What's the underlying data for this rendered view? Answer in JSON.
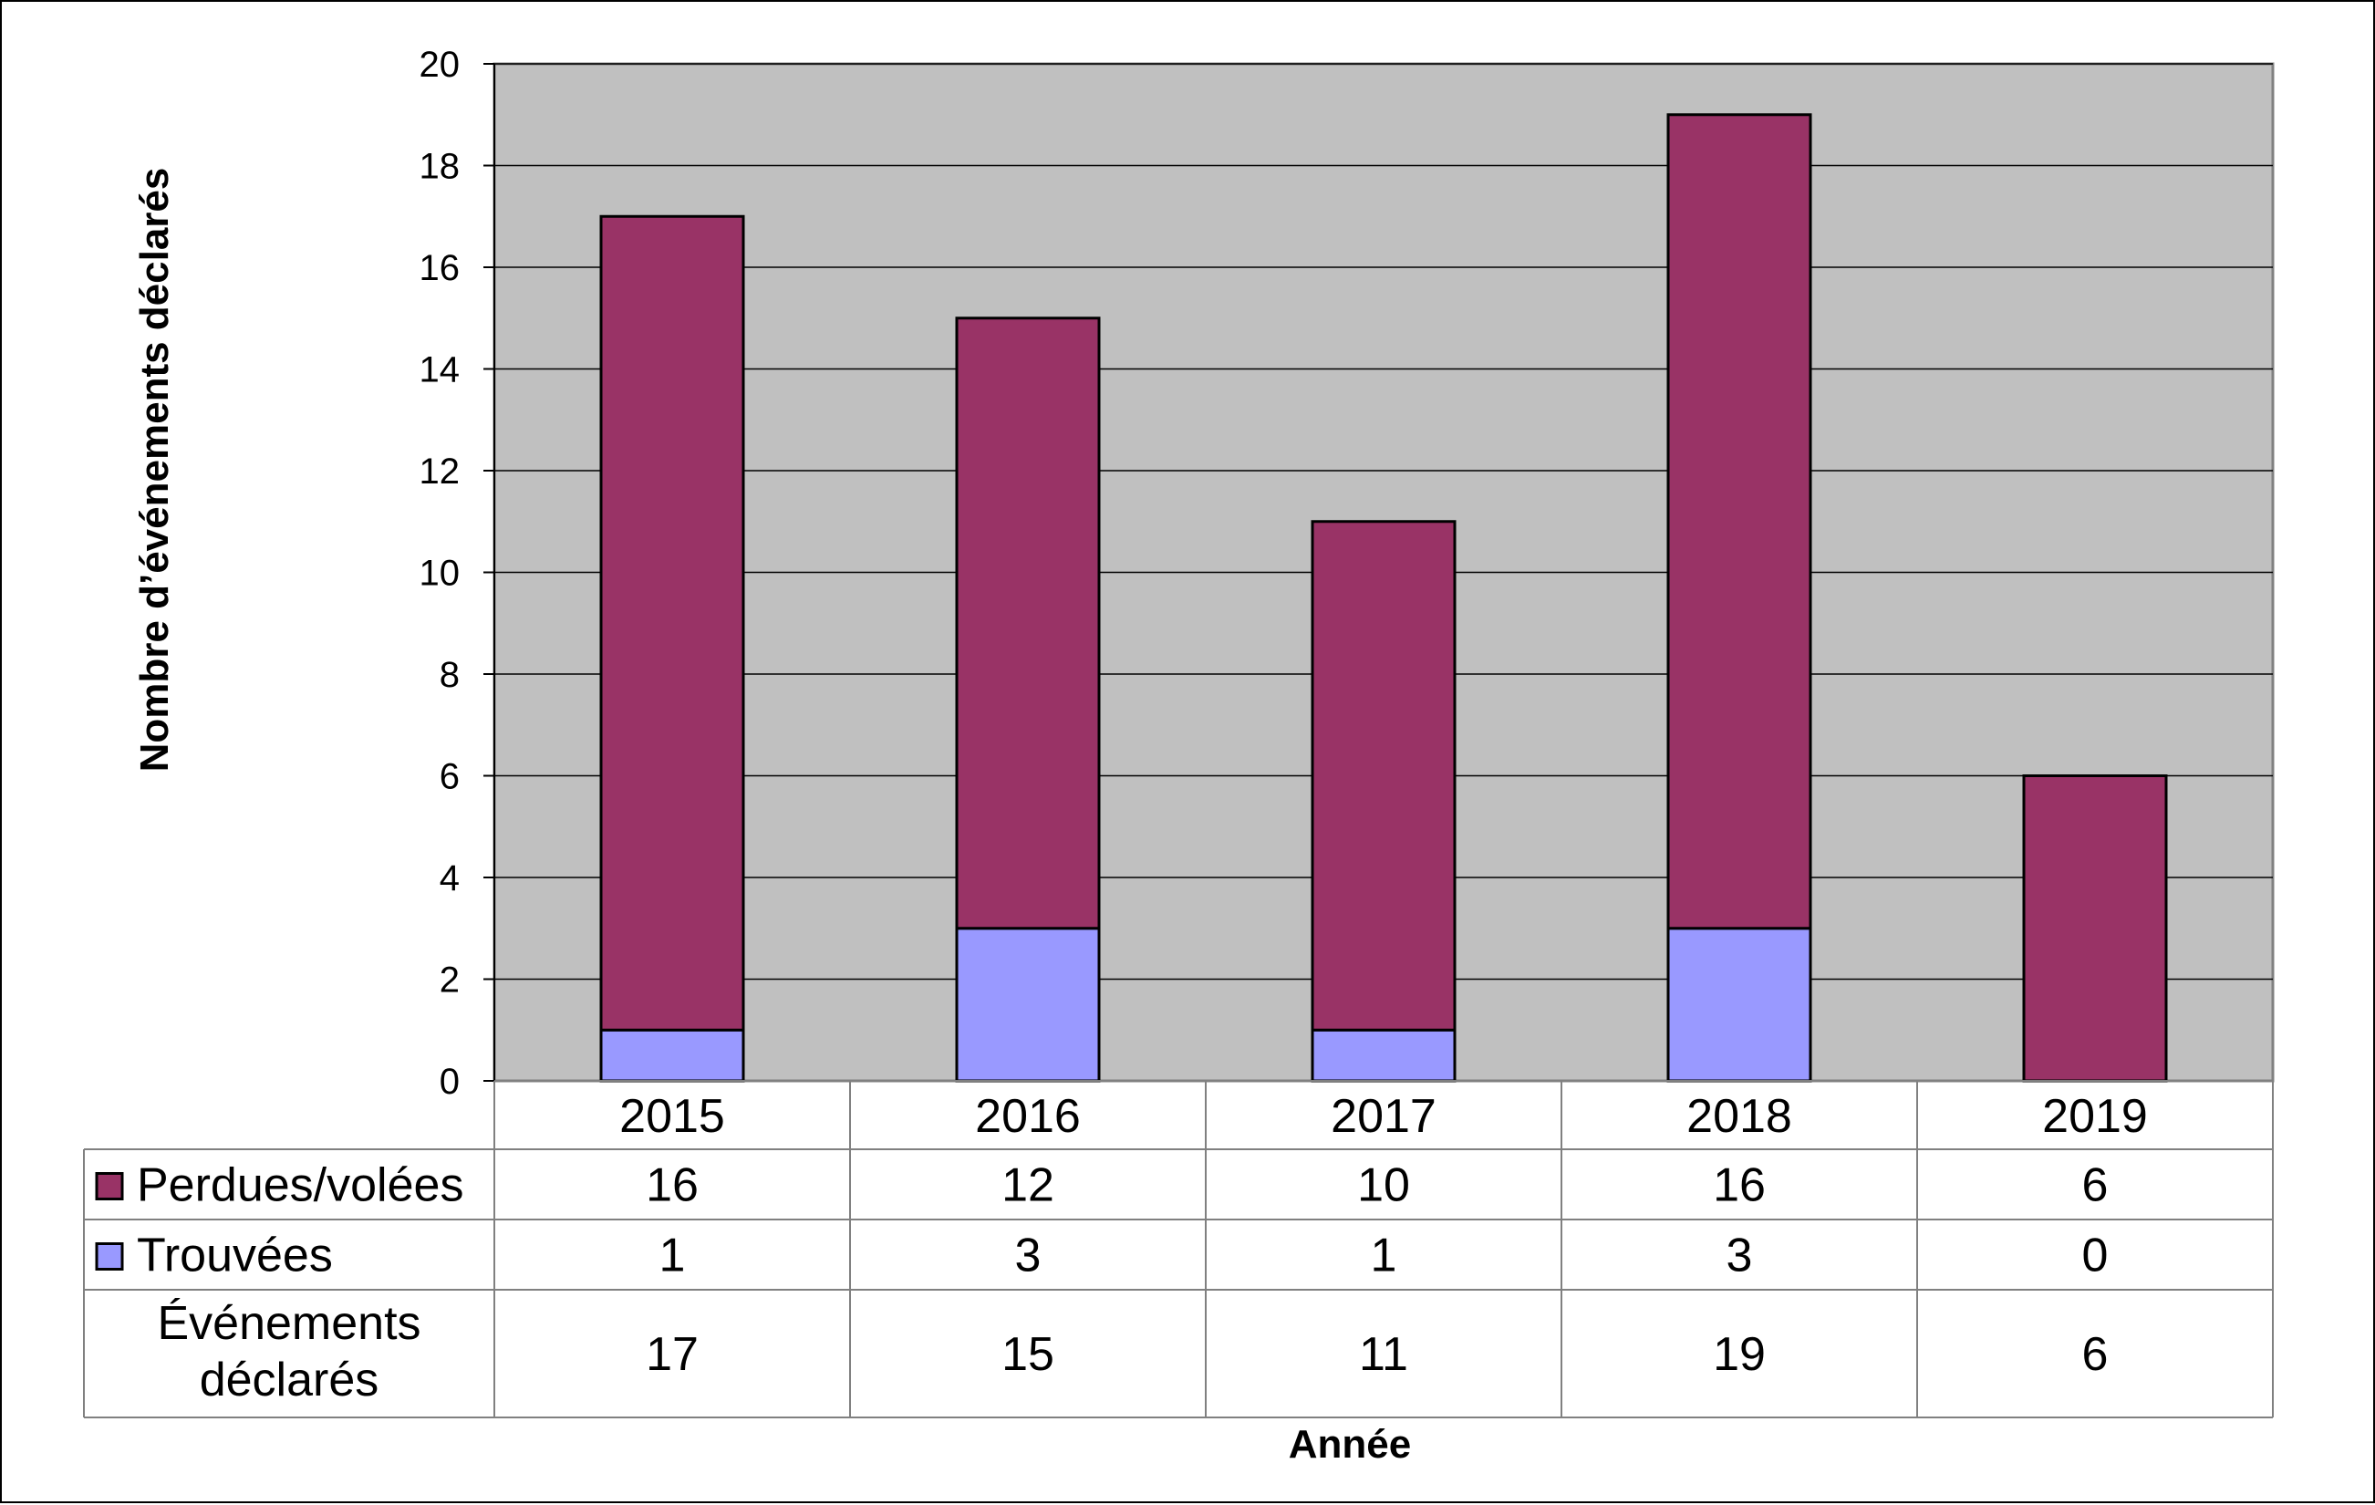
{
  "chart_data": {
    "type": "bar",
    "stacked": true,
    "categories": [
      "2015",
      "2016",
      "2017",
      "2018",
      "2019"
    ],
    "series": [
      {
        "name": "Trouvées",
        "values": [
          1,
          3,
          1,
          3,
          0
        ],
        "color": "#9999ff"
      },
      {
        "name": "Perdues/volées",
        "values": [
          16,
          12,
          10,
          16,
          6
        ],
        "color": "#993366"
      }
    ],
    "totals": {
      "label": "Événements déclarés",
      "values": [
        17,
        15,
        11,
        19,
        6
      ]
    },
    "ylabel": "Nombre d’événements déclarés",
    "xlabel": "Année",
    "ylim": [
      0,
      20
    ],
    "ytick_step": 2,
    "grid": true,
    "plot_background": "#c0c0c0",
    "legend": "data-table"
  }
}
